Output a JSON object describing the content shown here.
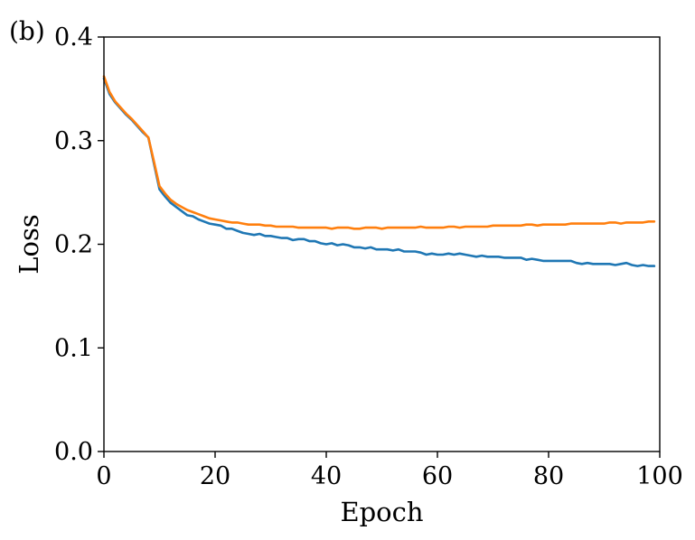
{
  "panel_label": "(b)",
  "colors": {
    "train": "#1f77b4",
    "val": "#ff7f0e"
  },
  "chart_data": {
    "type": "line",
    "xlabel": "Epoch",
    "ylabel": "Loss",
    "xlim": [
      0,
      100
    ],
    "ylim": [
      0.0,
      0.4
    ],
    "x_ticks": [
      0,
      20,
      40,
      60,
      80,
      100
    ],
    "x_tick_labels": [
      "0",
      "20",
      "40",
      "60",
      "80",
      "100"
    ],
    "y_ticks": [
      0.0,
      0.1,
      0.2,
      0.3,
      0.4
    ],
    "y_tick_labels": [
      "0.0",
      "0.1",
      "0.2",
      "0.3",
      "0.4"
    ],
    "grid": false,
    "series": [
      {
        "color": "#1f77b4",
        "x": [
          0,
          1,
          2,
          3,
          4,
          5,
          6,
          7,
          8,
          9,
          10,
          11,
          12,
          13,
          14,
          15,
          16,
          17,
          18,
          19,
          20,
          21,
          22,
          23,
          24,
          25,
          26,
          27,
          28,
          29,
          30,
          31,
          32,
          33,
          34,
          35,
          36,
          37,
          38,
          39,
          40,
          41,
          42,
          43,
          44,
          45,
          46,
          47,
          48,
          49,
          50,
          51,
          52,
          53,
          54,
          55,
          56,
          57,
          58,
          59,
          60,
          61,
          62,
          63,
          64,
          65,
          66,
          67,
          68,
          69,
          70,
          71,
          72,
          73,
          74,
          75,
          76,
          77,
          78,
          79,
          80,
          81,
          82,
          83,
          84,
          85,
          86,
          87,
          88,
          89,
          90,
          91,
          92,
          93,
          94,
          95,
          96,
          97,
          98,
          99
        ],
        "y": [
          0.36,
          0.345,
          0.337,
          0.331,
          0.325,
          0.32,
          0.314,
          0.308,
          0.303,
          0.278,
          0.253,
          0.246,
          0.24,
          0.236,
          0.232,
          0.228,
          0.227,
          0.224,
          0.222,
          0.22,
          0.219,
          0.218,
          0.215,
          0.215,
          0.213,
          0.211,
          0.21,
          0.209,
          0.21,
          0.208,
          0.208,
          0.207,
          0.206,
          0.206,
          0.204,
          0.205,
          0.205,
          0.203,
          0.203,
          0.201,
          0.2,
          0.201,
          0.199,
          0.2,
          0.199,
          0.197,
          0.197,
          0.196,
          0.197,
          0.195,
          0.195,
          0.195,
          0.194,
          0.195,
          0.193,
          0.193,
          0.193,
          0.192,
          0.19,
          0.191,
          0.19,
          0.19,
          0.191,
          0.19,
          0.191,
          0.19,
          0.189,
          0.188,
          0.189,
          0.188,
          0.188,
          0.188,
          0.187,
          0.187,
          0.187,
          0.187,
          0.185,
          0.186,
          0.185,
          0.184,
          0.184,
          0.184,
          0.184,
          0.184,
          0.184,
          0.182,
          0.181,
          0.182,
          0.181,
          0.181,
          0.181,
          0.181,
          0.18,
          0.181,
          0.182,
          0.18,
          0.179,
          0.18,
          0.179,
          0.179
        ]
      },
      {
        "color": "#ff7f0e",
        "x": [
          0,
          1,
          2,
          3,
          4,
          5,
          6,
          7,
          8,
          9,
          10,
          11,
          12,
          13,
          14,
          15,
          16,
          17,
          18,
          19,
          20,
          21,
          22,
          23,
          24,
          25,
          26,
          27,
          28,
          29,
          30,
          31,
          32,
          33,
          34,
          35,
          36,
          37,
          38,
          39,
          40,
          41,
          42,
          43,
          44,
          45,
          46,
          47,
          48,
          49,
          50,
          51,
          52,
          53,
          54,
          55,
          56,
          57,
          58,
          59,
          60,
          61,
          62,
          63,
          64,
          65,
          66,
          67,
          68,
          69,
          70,
          71,
          72,
          73,
          74,
          75,
          76,
          77,
          78,
          79,
          80,
          81,
          82,
          83,
          84,
          85,
          86,
          87,
          88,
          89,
          90,
          91,
          92,
          93,
          94,
          95,
          96,
          97,
          98,
          99
        ],
        "y": [
          0.362,
          0.347,
          0.338,
          0.332,
          0.326,
          0.321,
          0.315,
          0.309,
          0.303,
          0.28,
          0.256,
          0.249,
          0.243,
          0.239,
          0.236,
          0.233,
          0.231,
          0.229,
          0.227,
          0.225,
          0.224,
          0.223,
          0.222,
          0.221,
          0.221,
          0.22,
          0.219,
          0.219,
          0.219,
          0.218,
          0.218,
          0.217,
          0.217,
          0.217,
          0.217,
          0.216,
          0.216,
          0.216,
          0.216,
          0.216,
          0.216,
          0.215,
          0.216,
          0.216,
          0.216,
          0.215,
          0.215,
          0.216,
          0.216,
          0.216,
          0.215,
          0.216,
          0.216,
          0.216,
          0.216,
          0.216,
          0.216,
          0.217,
          0.216,
          0.216,
          0.216,
          0.216,
          0.217,
          0.217,
          0.216,
          0.217,
          0.217,
          0.217,
          0.217,
          0.217,
          0.218,
          0.218,
          0.218,
          0.218,
          0.218,
          0.218,
          0.219,
          0.219,
          0.218,
          0.219,
          0.219,
          0.219,
          0.219,
          0.219,
          0.22,
          0.22,
          0.22,
          0.22,
          0.22,
          0.22,
          0.22,
          0.221,
          0.221,
          0.22,
          0.221,
          0.221,
          0.221,
          0.221,
          0.222,
          0.222
        ]
      }
    ]
  }
}
